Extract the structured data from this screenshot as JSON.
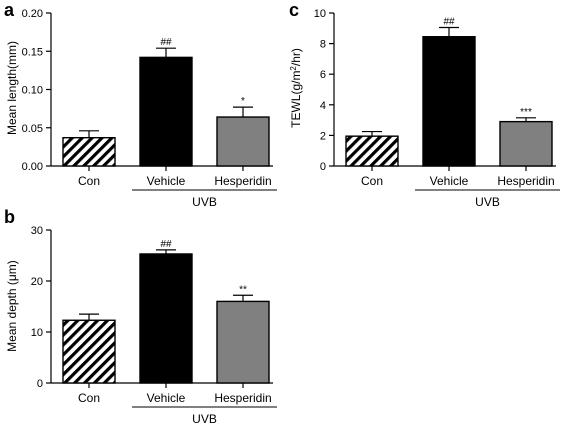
{
  "chart_data": [
    {
      "panel": "a",
      "type": "bar",
      "categories": [
        "Con",
        "Vehicle",
        "Hesperidin"
      ],
      "group_label": "UVB",
      "values": [
        0.037,
        0.142,
        0.064
      ],
      "errors": [
        0.009,
        0.012,
        0.013
      ],
      "significance": [
        "",
        "##",
        "*"
      ],
      "ylabel": "Mean length(mm)",
      "ylim": [
        0,
        0.2
      ],
      "yticks": [
        0.0,
        0.05,
        0.1,
        0.15,
        0.2
      ],
      "ytick_labels": [
        "0.00",
        "0.05",
        "0.10",
        "0.15",
        "0.20"
      ],
      "fills": [
        "hatch",
        "#000000",
        "#808080"
      ]
    },
    {
      "panel": "b",
      "type": "bar",
      "categories": [
        "Con",
        "Vehicle",
        "Hesperidin"
      ],
      "group_label": "UVB",
      "values": [
        12.3,
        25.3,
        16.0
      ],
      "errors": [
        1.2,
        0.8,
        1.2
      ],
      "significance": [
        "",
        "##",
        "**"
      ],
      "ylabel": "Mean depth (μm)",
      "ylim": [
        0,
        30
      ],
      "yticks": [
        0,
        10,
        20,
        30
      ],
      "ytick_labels": [
        "0",
        "10",
        "20",
        "30"
      ],
      "fills": [
        "hatch",
        "#000000",
        "#808080"
      ]
    },
    {
      "panel": "c",
      "type": "bar",
      "categories": [
        "Con",
        "Vehicle",
        "Hesperidin"
      ],
      "group_label": "UVB",
      "values": [
        1.95,
        8.45,
        2.9
      ],
      "errors": [
        0.3,
        0.6,
        0.25
      ],
      "significance": [
        "",
        "##",
        "***"
      ],
      "ylabel": "TEWL(g/m2/hr)",
      "ylim": [
        0,
        10
      ],
      "yticks": [
        0,
        2,
        4,
        6,
        8,
        10
      ],
      "ytick_labels": [
        "0",
        "2",
        "4",
        "6",
        "8",
        "10"
      ],
      "fills": [
        "hatch",
        "#000000",
        "#808080"
      ]
    }
  ]
}
